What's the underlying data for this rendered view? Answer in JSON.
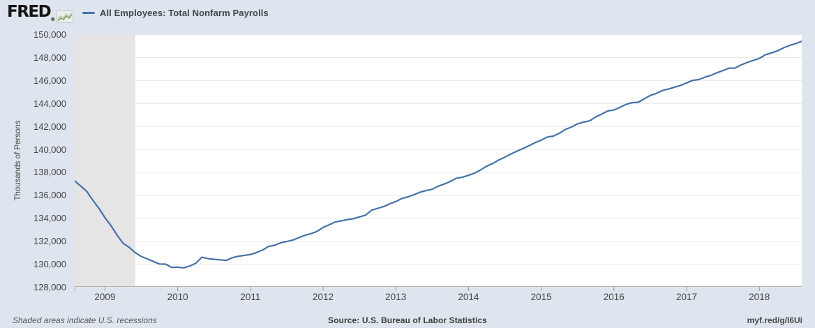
{
  "header": {
    "logo_text": "FRED",
    "registered_mark": "®",
    "legend": {
      "series_label": "All Employees: Total Nonfarm Payrolls"
    }
  },
  "y_axis": {
    "title": "Thousands of Persons"
  },
  "footer": {
    "recession_note": "Shaded areas indicate U.S. recessions",
    "source": "Source: U.S. Bureau of Labor Statistics",
    "short_url": "myf.red/g/I6Ui"
  },
  "colors": {
    "background": "#dfe5ee",
    "plot_background": "#ffffff",
    "recession_shading": "#e5e5e5",
    "gridline": "#e8e8e8",
    "axis_line": "#b3b3b3",
    "tick": "#999999",
    "text_primary": "#444444",
    "series_line": "#4572a7",
    "logo_green": "#6f9e4f"
  },
  "chart_data": {
    "type": "line",
    "title": "All Employees: Total Nonfarm Payrolls",
    "ylabel": "Thousands of Persons",
    "xlabel": "",
    "frequency": "monthly",
    "x_start": "2008-08",
    "x_end": "2018-08",
    "ylim": [
      128000,
      150000
    ],
    "grid": true,
    "legend_position": "top-left",
    "y_ticks": [
      128000,
      130000,
      132000,
      134000,
      136000,
      138000,
      140000,
      142000,
      144000,
      146000,
      148000,
      150000
    ],
    "y_tick_labels": [
      "128,000",
      "130,000",
      "132,000",
      "134,000",
      "136,000",
      "138,000",
      "140,000",
      "142,000",
      "144,000",
      "146,000",
      "148,000",
      "150,000"
    ],
    "x_ticks": [
      {
        "label": "2009",
        "month_index": 5
      },
      {
        "label": "2010",
        "month_index": 17
      },
      {
        "label": "2011",
        "month_index": 29
      },
      {
        "label": "2012",
        "month_index": 41
      },
      {
        "label": "2013",
        "month_index": 53
      },
      {
        "label": "2014",
        "month_index": 65
      },
      {
        "label": "2015",
        "month_index": 77
      },
      {
        "label": "2016",
        "month_index": 89
      },
      {
        "label": "2017",
        "month_index": 101
      },
      {
        "label": "2018",
        "month_index": 113
      }
    ],
    "extra_tick_indices": [
      0
    ],
    "recession_bands": [
      {
        "start_index": 0,
        "end_index": 10,
        "note": "Great Recession (ends Jun 2009)"
      }
    ],
    "series": [
      {
        "name": "All Employees: Total Nonfarm Payrolls",
        "color": "#4572a7",
        "values": [
          137228,
          136775,
          136301,
          135534,
          134837,
          134023,
          133322,
          132499,
          131795,
          131441,
          130971,
          130644,
          130428,
          130201,
          129986,
          129975,
          129697,
          129705,
          129655,
          129811,
          130062,
          130578,
          130456,
          130395,
          130353,
          130296,
          130537,
          130661,
          130732,
          130815,
          130983,
          131195,
          131517,
          131619,
          131836,
          131942,
          132064,
          132285,
          132488,
          132630,
          132826,
          133172,
          133404,
          133647,
          133743,
          133853,
          133932,
          134092,
          134242,
          134667,
          134837,
          134985,
          135227,
          135425,
          135694,
          135835,
          136025,
          136239,
          136383,
          136497,
          136765,
          136950,
          137179,
          137462,
          137546,
          137714,
          137902,
          138177,
          138507,
          138736,
          139042,
          139291,
          139568,
          139818,
          140040,
          140303,
          140554,
          140775,
          141041,
          141125,
          141376,
          141713,
          141919,
          142194,
          142345,
          142457,
          142801,
          143045,
          143316,
          143400,
          143637,
          143885,
          144038,
          144076,
          144373,
          144665,
          144849,
          145098,
          145222,
          145386,
          145541,
          145757,
          145977,
          146050,
          146257,
          146412,
          146642,
          146831,
          147039,
          147053,
          147324,
          147540,
          147715,
          147891,
          148215,
          148370,
          148545,
          148813,
          149021,
          149178,
          149379
        ]
      }
    ]
  }
}
